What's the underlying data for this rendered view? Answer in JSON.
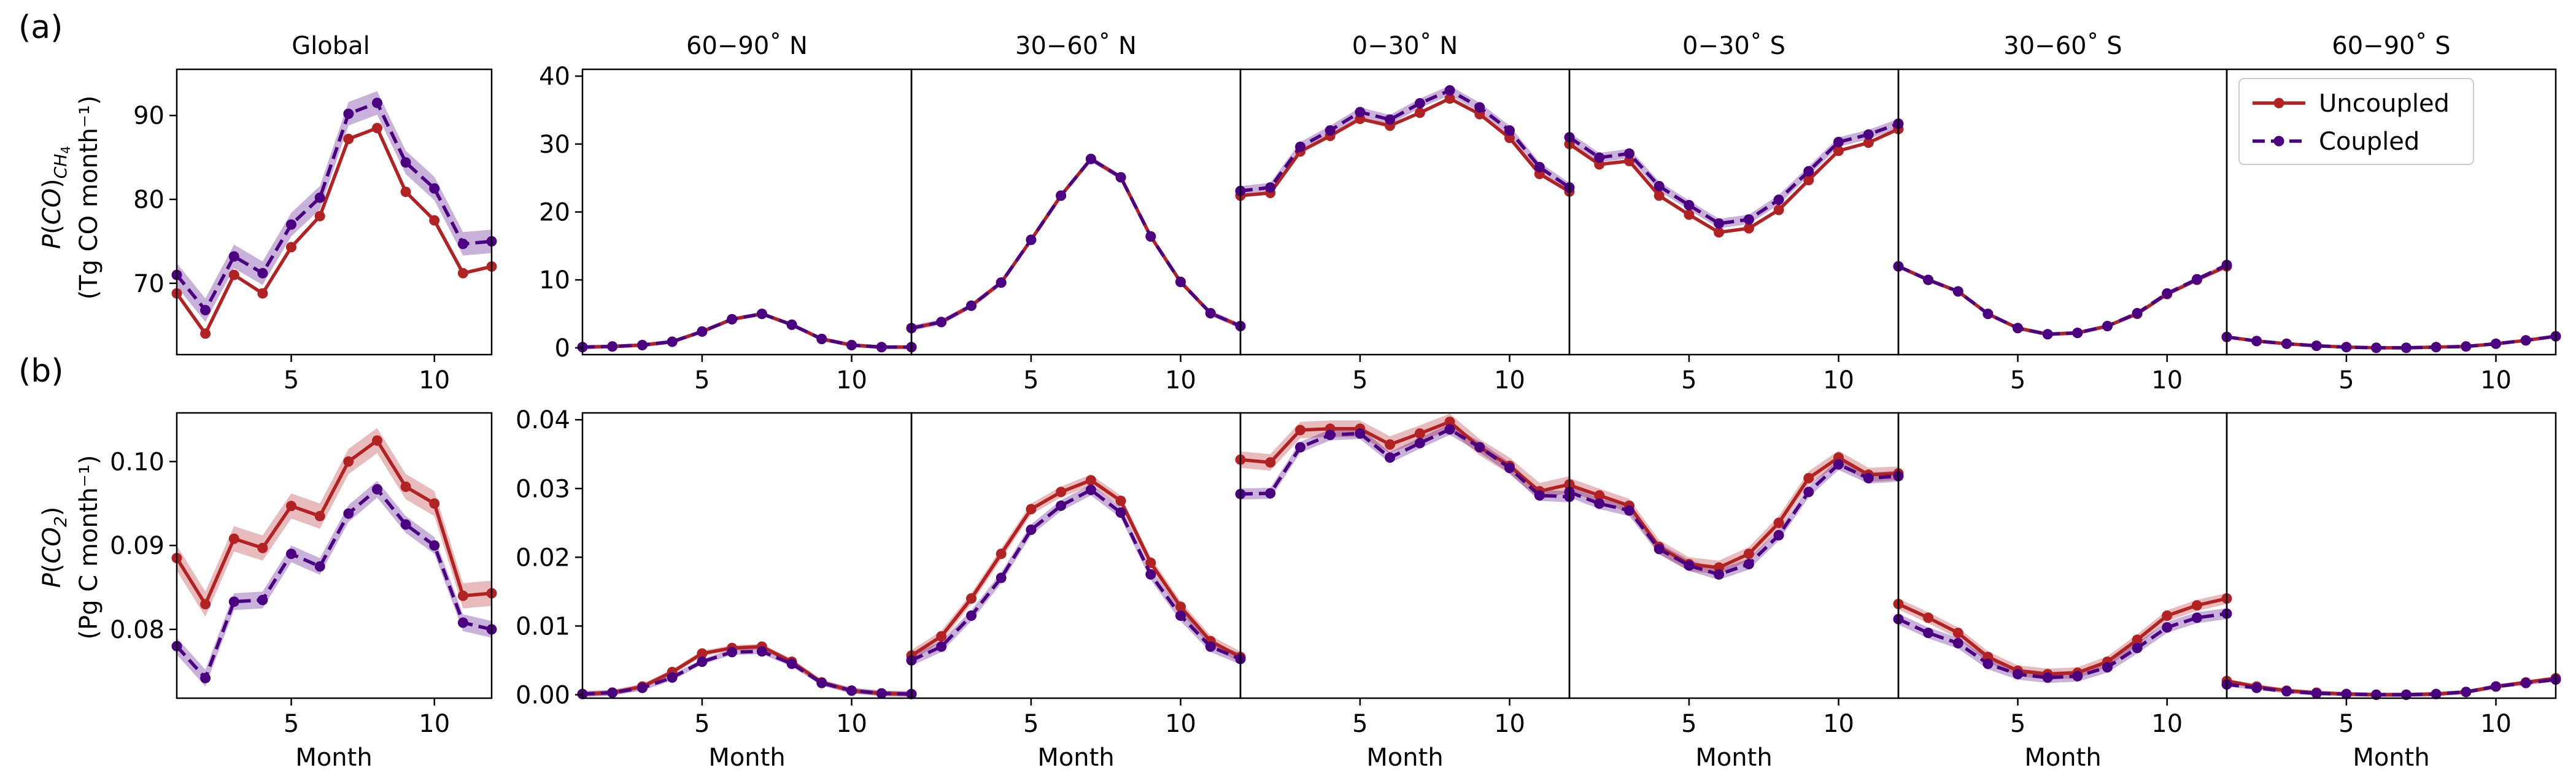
{
  "figure": {
    "row_labels": [
      "(a)",
      "(b)"
    ],
    "regions": [
      "Global",
      "60−90˚ N",
      "30−60˚ N",
      "0−30˚ N",
      "0−30˚ S",
      "30−60˚ S",
      "60−90˚ S"
    ],
    "xlabel": "Month",
    "colors": {
      "uncoupled": "#b22222",
      "coupled": "#4b0082"
    }
  },
  "chart_data": [
    {
      "type": "line",
      "row": "(a)",
      "ylabel": [
        "P(CO)CH4",
        "(Tg CO month⁻¹)"
      ],
      "legend": {
        "entries": [
          "Uncoupled",
          "Coupled"
        ],
        "placement": "top-right of 60−90˚ S panel"
      },
      "months": [
        1,
        2,
        3,
        4,
        5,
        6,
        7,
        8,
        9,
        10,
        11,
        12
      ],
      "xlim": [
        1,
        12
      ],
      "xticks": [
        5,
        10
      ],
      "panels": [
        {
          "region": "Global",
          "ylim": [
            61.5,
            95.5
          ],
          "yticks": [
            70,
            80,
            90
          ],
          "series": [
            {
              "name": "Uncoupled",
              "values": [
                68.8,
                64.0,
                71.0,
                68.8,
                74.3,
                78.0,
                87.2,
                88.5,
                80.9,
                77.5,
                71.2,
                72.0
              ],
              "band": 0
            },
            {
              "name": "Coupled",
              "values": [
                71.0,
                66.8,
                73.2,
                71.2,
                77.0,
                80.2,
                90.2,
                91.5,
                84.4,
                81.3,
                74.7,
                75.0
              ],
              "band": 1.4
            }
          ]
        },
        {
          "region": "60−90˚ N",
          "ylim": [
            -1,
            41
          ],
          "yticks": [
            0,
            10,
            20,
            30,
            40
          ],
          "series": [
            {
              "name": "Uncoupled",
              "values": [
                0.1,
                0.2,
                0.4,
                0.9,
                2.4,
                4.2,
                5.0,
                3.4,
                1.3,
                0.4,
                0.1,
                0.1
              ],
              "band": 0
            },
            {
              "name": "Coupled",
              "values": [
                0.1,
                0.2,
                0.4,
                0.9,
                2.4,
                4.2,
                5.0,
                3.4,
                1.3,
                0.4,
                0.1,
                0.1
              ],
              "band": 0.3
            }
          ]
        },
        {
          "region": "30−60˚ N",
          "ylim": [
            -1,
            41
          ],
          "yticks": [],
          "series": [
            {
              "name": "Uncoupled",
              "values": [
                2.9,
                3.8,
                6.2,
                9.6,
                15.9,
                22.4,
                27.8,
                25.1,
                16.4,
                9.7,
                5.1,
                3.2
              ],
              "band": 0
            },
            {
              "name": "Coupled",
              "values": [
                2.9,
                3.8,
                6.2,
                9.6,
                15.9,
                22.4,
                27.8,
                25.1,
                16.4,
                9.7,
                5.1,
                3.2
              ],
              "band": 0.4
            }
          ]
        },
        {
          "region": "0−30˚ N",
          "ylim": [
            -1,
            41
          ],
          "yticks": [],
          "series": [
            {
              "name": "Uncoupled",
              "values": [
                22.4,
                22.8,
                28.9,
                31.2,
                33.7,
                32.7,
                34.6,
                36.7,
                34.4,
                30.9,
                25.6,
                23.0
              ],
              "band": 0
            },
            {
              "name": "Coupled",
              "values": [
                23.1,
                23.6,
                29.6,
                32.0,
                34.7,
                33.6,
                36.0,
                37.9,
                35.4,
                32.0,
                26.6,
                23.6
              ],
              "band": 0.7
            }
          ]
        },
        {
          "region": "0−30˚ S",
          "ylim": [
            -1,
            41
          ],
          "yticks": [],
          "series": [
            {
              "name": "Uncoupled",
              "values": [
                30.0,
                27.0,
                27.5,
                22.4,
                19.6,
                17.0,
                17.6,
                20.3,
                24.7,
                29.0,
                30.2,
                32.2
              ],
              "band": 0
            },
            {
              "name": "Coupled",
              "values": [
                31.0,
                28.0,
                28.6,
                23.8,
                21.0,
                18.3,
                18.9,
                21.8,
                26.0,
                30.3,
                31.4,
                33.0
              ],
              "band": 0.7
            }
          ]
        },
        {
          "region": "30−60˚ S",
          "ylim": [
            -1,
            41
          ],
          "yticks": [],
          "series": [
            {
              "name": "Uncoupled",
              "values": [
                12.0,
                10.0,
                8.3,
                5.0,
                2.9,
                2.0,
                2.2,
                3.2,
                5.0,
                7.9,
                10.0,
                12.0
              ],
              "band": 0
            },
            {
              "name": "Coupled",
              "values": [
                12.0,
                10.0,
                8.3,
                5.0,
                2.9,
                2.0,
                2.2,
                3.2,
                5.1,
                8.0,
                10.1,
                12.2
              ],
              "band": 0.3
            }
          ]
        },
        {
          "region": "60−90˚ S",
          "ylim": [
            -1,
            41
          ],
          "yticks": [],
          "series": [
            {
              "name": "Uncoupled",
              "values": [
                1.6,
                1.0,
                0.6,
                0.3,
                0.1,
                0.0,
                0.0,
                0.1,
                0.2,
                0.6,
                1.1,
                1.7
              ],
              "band": 0
            },
            {
              "name": "Coupled",
              "values": [
                1.6,
                1.0,
                0.6,
                0.3,
                0.1,
                0.0,
                0.0,
                0.1,
                0.2,
                0.6,
                1.1,
                1.7
              ],
              "band": 0.2
            }
          ]
        }
      ]
    },
    {
      "type": "line",
      "row": "(b)",
      "ylabel": [
        "P(CO2)",
        "(Pg C month⁻¹)"
      ],
      "months": [
        1,
        2,
        3,
        4,
        5,
        6,
        7,
        8,
        9,
        10,
        11,
        12
      ],
      "xlim": [
        1,
        12
      ],
      "xticks": [
        5,
        10
      ],
      "panels": [
        {
          "region": "Global",
          "ylim": [
            0.0718,
            0.1058
          ],
          "yticks": [
            0.08,
            0.09,
            0.1
          ],
          "yticklabels": [
            "0.08",
            "0.09",
            "0.10"
          ],
          "series": [
            {
              "name": "Uncoupled",
              "values": [
                0.0885,
                0.083,
                0.0908,
                0.0897,
                0.0947,
                0.0935,
                0.1,
                0.1025,
                0.097,
                0.095,
                0.084,
                0.0843
              ],
              "band": 0.0015
            },
            {
              "name": "Coupled",
              "values": [
                0.078,
                0.0742,
                0.0833,
                0.0835,
                0.089,
                0.0875,
                0.0938,
                0.0967,
                0.0925,
                0.09,
                0.0808,
                0.08
              ],
              "band": 0.001
            }
          ]
        },
        {
          "region": "60−90˚ N",
          "ylim": [
            -0.0005,
            0.041
          ],
          "yticks": [
            0.0,
            0.01,
            0.02,
            0.03,
            0.04
          ],
          "yticklabels": [
            "0.00",
            "0.01",
            "0.02",
            "0.03",
            "0.04"
          ],
          "series": [
            {
              "name": "Uncoupled",
              "values": [
                0.0001,
                0.0003,
                0.0012,
                0.0033,
                0.006,
                0.0068,
                0.007,
                0.0048,
                0.0018,
                0.0006,
                0.0002,
                0.0001
              ],
              "band": 0.0004
            },
            {
              "name": "Coupled",
              "values": [
                0.0001,
                0.0003,
                0.001,
                0.0025,
                0.0048,
                0.0062,
                0.0063,
                0.0045,
                0.0017,
                0.0006,
                0.0002,
                0.0001
              ],
              "band": 0.0004
            }
          ]
        },
        {
          "region": "30−60˚ N",
          "ylim": [
            -0.0005,
            0.041
          ],
          "yticks": [],
          "series": [
            {
              "name": "Uncoupled",
              "values": [
                0.0057,
                0.0085,
                0.014,
                0.0205,
                0.027,
                0.0295,
                0.0312,
                0.0282,
                0.0192,
                0.0128,
                0.0078,
                0.0055
              ],
              "band": 0.0008
            },
            {
              "name": "Coupled",
              "values": [
                0.005,
                0.007,
                0.0115,
                0.017,
                0.024,
                0.0275,
                0.0298,
                0.0265,
                0.0175,
                0.0115,
                0.007,
                0.0052
              ],
              "band": 0.0008
            }
          ]
        },
        {
          "region": "0−30˚ N",
          "ylim": [
            -0.0005,
            0.041
          ],
          "yticks": [],
          "series": [
            {
              "name": "Uncoupled",
              "values": [
                0.0342,
                0.0338,
                0.0385,
                0.0387,
                0.0387,
                0.0364,
                0.038,
                0.0397,
                0.036,
                0.0333,
                0.0296,
                0.0306
              ],
              "band": 0.0012
            },
            {
              "name": "Coupled",
              "values": [
                0.0292,
                0.0293,
                0.036,
                0.0378,
                0.038,
                0.0345,
                0.0366,
                0.0386,
                0.036,
                0.033,
                0.029,
                0.0288
              ],
              "band": 0.0008
            }
          ]
        },
        {
          "region": "0−30˚ S",
          "ylim": [
            -0.0005,
            0.041
          ],
          "yticks": [],
          "series": [
            {
              "name": "Uncoupled",
              "values": [
                0.0305,
                0.029,
                0.0275,
                0.0215,
                0.019,
                0.0185,
                0.0205,
                0.025,
                0.0315,
                0.0345,
                0.032,
                0.0322
              ],
              "band": 0.001
            },
            {
              "name": "Coupled",
              "values": [
                0.0295,
                0.0278,
                0.0268,
                0.0212,
                0.0188,
                0.0175,
                0.019,
                0.0232,
                0.0295,
                0.0335,
                0.0315,
                0.0318
              ],
              "band": 0.0008
            }
          ]
        },
        {
          "region": "30−60˚ S",
          "ylim": [
            -0.0005,
            0.041
          ],
          "yticks": [],
          "series": [
            {
              "name": "Uncoupled",
              "values": [
                0.0132,
                0.0112,
                0.009,
                0.0055,
                0.0035,
                0.003,
                0.0032,
                0.0048,
                0.008,
                0.0115,
                0.013,
                0.014
              ],
              "band": 0.0008
            },
            {
              "name": "Coupled",
              "values": [
                0.011,
                0.009,
                0.0075,
                0.0045,
                0.003,
                0.0025,
                0.0027,
                0.004,
                0.0068,
                0.0098,
                0.0112,
                0.0118
              ],
              "band": 0.0008
            }
          ]
        },
        {
          "region": "60−90˚ S",
          "ylim": [
            -0.0005,
            0.041
          ],
          "yticks": [],
          "series": [
            {
              "name": "Uncoupled",
              "values": [
                0.002,
                0.0012,
                0.0006,
                0.0003,
                0.0001,
                0.0,
                0.0,
                0.0001,
                0.0004,
                0.0012,
                0.0018,
                0.0024
              ],
              "band": 0.0003
            },
            {
              "name": "Coupled",
              "values": [
                0.0015,
                0.001,
                0.0005,
                0.0002,
                0.0001,
                0.0,
                0.0,
                0.0001,
                0.0004,
                0.0012,
                0.0017,
                0.0022
              ],
              "band": 0.0003
            }
          ]
        }
      ]
    }
  ]
}
